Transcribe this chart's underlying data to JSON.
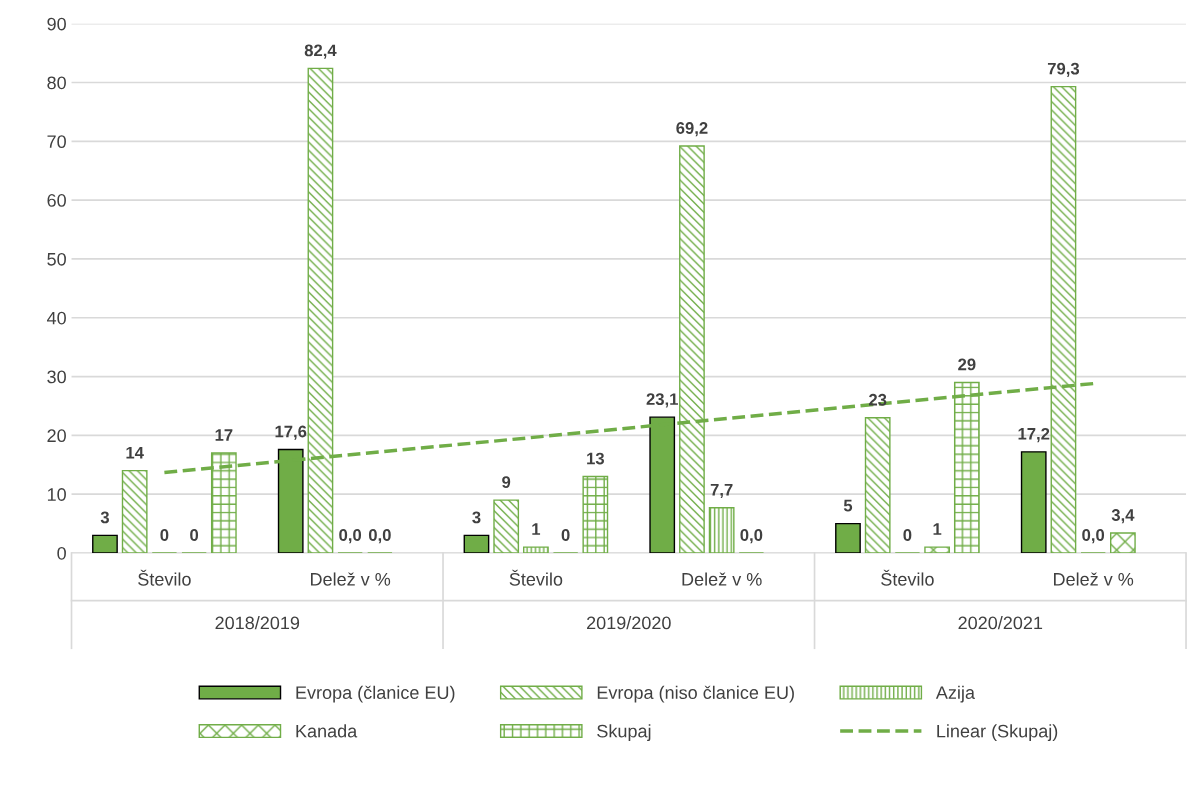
{
  "chart_data": {
    "type": "bar",
    "categories": [
      "Število",
      "Delež v %",
      "Število",
      "Delež v %",
      "Število",
      "Delež v %"
    ],
    "series": [
      {
        "name": "Evropa (članice EU)",
        "color": "#70ad47",
        "values": [
          3,
          17.6,
          3,
          23.1,
          5,
          17.2
        ],
        "value_labels": [
          "3",
          "17,6",
          "3",
          "23,1",
          "5",
          "17,2"
        ]
      },
      {
        "name": "Evropa (niso članice EU)",
        "color": "#70ad47",
        "values": [
          14,
          82.4,
          9,
          69.2,
          23,
          79.3
        ],
        "value_labels": [
          "14",
          "82,4",
          "9",
          "69,2",
          "23",
          "79,3"
        ]
      },
      {
        "name": "Azija",
        "color": "#70ad47",
        "values": [
          0,
          0,
          1,
          7.7,
          0,
          0
        ],
        "value_labels": [
          "0",
          "0,0",
          "1",
          "7,7",
          "0",
          "0,0"
        ]
      },
      {
        "name": "Kanada",
        "color": "#70ad47",
        "values": [
          0,
          0,
          0,
          0,
          1,
          3.4
        ],
        "value_labels": [
          "0",
          "0,0",
          "0",
          "0,0",
          "1",
          "3,4"
        ]
      },
      {
        "name": "Skupaj",
        "color": "#70ad47",
        "values": [
          17,
          null,
          13,
          null,
          29,
          null
        ],
        "value_labels": [
          "17",
          null,
          "13",
          null,
          "29",
          null
        ]
      },
      {
        "name": "Linear (Skupaj)",
        "type": "line",
        "color": "#70ad47",
        "line_style": "dashed",
        "values": [
          13.7,
          16.7,
          19.7,
          22.8,
          25.8,
          28.8
        ]
      }
    ],
    "annotations": [
      "2018/2019",
      "2019/2020",
      "2020/2021"
    ],
    "ylim": [
      0,
      90
    ],
    "yticks": [
      0,
      10,
      20,
      30,
      40,
      50,
      60,
      70,
      80,
      90
    ],
    "grid": "y",
    "legend": "bottom"
  }
}
